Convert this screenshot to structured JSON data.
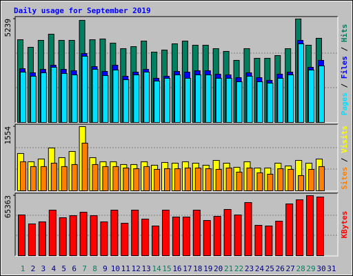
{
  "chart_data": [
    {
      "type": "bar",
      "title": "Daily usage for September 2019",
      "ylim": [
        0,
        5239
      ],
      "yticks": [
        5239
      ],
      "grid_divisions": 3,
      "legend_separator": " / ",
      "series": [
        {
          "name": "Hits",
          "color": "#008060",
          "values": [
            4191,
            3807,
            4157,
            4471,
            4157,
            4157,
            5170,
            4191,
            4227,
            4017,
            3738,
            3842,
            4122,
            3563,
            3668,
            3982,
            4122,
            3912,
            3912,
            3738,
            3598,
            3144,
            3738,
            3249,
            3249,
            3388,
            3738,
            5239,
            3912,
            4262,
            null
          ]
        },
        {
          "name": "Files",
          "color": "#0000ff",
          "values": [
            2724,
            2515,
            2690,
            2899,
            2690,
            2620,
            3493,
            2829,
            2585,
            2899,
            2340,
            2550,
            2690,
            2236,
            2340,
            2585,
            2550,
            2620,
            2620,
            2445,
            2410,
            2270,
            2515,
            2270,
            2131,
            2445,
            2550,
            4157,
            2794,
            3144,
            null
          ]
        },
        {
          "name": "Pages",
          "color": "#00e0ff",
          "values": [
            2550,
            2340,
            2515,
            2794,
            2480,
            2410,
            3353,
            2690,
            2375,
            2655,
            2166,
            2410,
            2550,
            2096,
            2236,
            2410,
            2236,
            2410,
            2410,
            2236,
            2236,
            2061,
            2340,
            2061,
            1991,
            2236,
            2410,
            3982,
            2655,
            2864,
            null
          ]
        }
      ]
    },
    {
      "type": "bar",
      "ylim": [
        0,
        1554
      ],
      "yticks": [
        1554
      ],
      "grid_divisions": 3,
      "legend_separator": " / ",
      "series": [
        {
          "name": "Visits",
          "color": "#ffff00",
          "values": [
            903,
            703,
            770,
            1037,
            803,
            953,
            1554,
            803,
            703,
            703,
            636,
            636,
            703,
            619,
            686,
            669,
            703,
            669,
            619,
            736,
            669,
            569,
            703,
            552,
            552,
            669,
            602,
            736,
            669,
            770,
            null
          ]
        },
        {
          "name": "Sites",
          "color": "#ff8000",
          "values": [
            703,
            586,
            586,
            669,
            586,
            636,
            1154,
            636,
            586,
            586,
            552,
            535,
            586,
            519,
            535,
            535,
            552,
            552,
            535,
            519,
            552,
            452,
            552,
            435,
            402,
            535,
            519,
            368,
            519,
            586,
            null
          ]
        }
      ]
    },
    {
      "type": "bar",
      "ylim": [
        0,
        65363
      ],
      "yticks": [
        65363
      ],
      "grid_divisions": 3,
      "categories": [
        "1",
        "2",
        "3",
        "4",
        "5",
        "6",
        "7",
        "8",
        "9",
        "10",
        "11",
        "12",
        "13",
        "14",
        "15",
        "16",
        "17",
        "18",
        "19",
        "20",
        "21",
        "22",
        "23",
        "24",
        "25",
        "26",
        "27",
        "28",
        "29",
        "30",
        "31"
      ],
      "category_colors": [
        "#008060",
        "#000080",
        "#000080",
        "#000080",
        "#000080",
        "#000080",
        "#008060",
        "#008060",
        "#000080",
        "#000080",
        "#000080",
        "#000080",
        "#000080",
        "#008060",
        "#008060",
        "#000080",
        "#000080",
        "#000080",
        "#000080",
        "#000080",
        "#008060",
        "#008060",
        "#000080",
        "#000080",
        "#000080",
        "#000080",
        "#000080",
        "#008060",
        "#008060",
        "#000080",
        "#000080"
      ],
      "series": [
        {
          "name": "KBytes",
          "color": "#ff0000",
          "values": [
            44309,
            34546,
            36799,
            49566,
            41305,
            43558,
            47313,
            43558,
            36799,
            49566,
            35297,
            49566,
            39803,
            32293,
            49566,
            42056,
            42056,
            49566,
            38301,
            42807,
            50317,
            44309,
            57827,
            33044,
            32293,
            37550,
            56325,
            60831,
            65363,
            63835,
            null
          ]
        }
      ]
    }
  ]
}
